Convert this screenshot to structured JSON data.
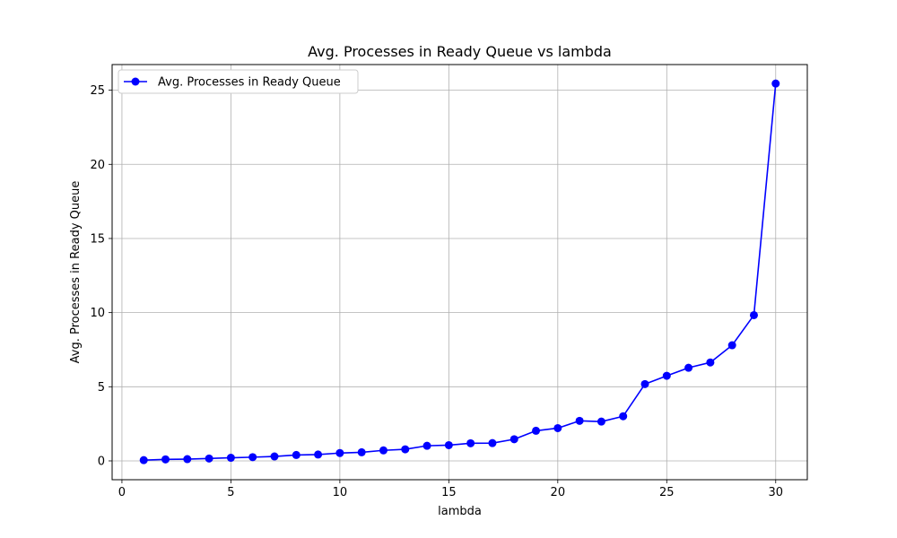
{
  "chart_data": {
    "type": "line",
    "title": "Avg. Processes in Ready Queue vs lambda",
    "xlabel": "lambda",
    "ylabel": "Avg. Processes in Ready Queue",
    "xlim": [
      -0.45,
      31.45
    ],
    "ylim": [
      -1.27,
      26.73
    ],
    "xticks": [
      0,
      5,
      10,
      15,
      20,
      25,
      30
    ],
    "yticks": [
      0,
      5,
      10,
      15,
      20,
      25
    ],
    "grid": true,
    "legend_position": "top-left",
    "series": [
      {
        "name": "Avg. Processes in Ready Queue",
        "color": "#0000ff",
        "marker": "circle",
        "x": [
          1,
          2,
          3,
          4,
          5,
          6,
          7,
          8,
          9,
          10,
          11,
          12,
          13,
          14,
          15,
          16,
          17,
          18,
          19,
          20,
          21,
          22,
          23,
          24,
          25,
          26,
          27,
          28,
          29,
          30
        ],
        "y": [
          0.05,
          0.1,
          0.12,
          0.16,
          0.21,
          0.25,
          0.3,
          0.4,
          0.43,
          0.53,
          0.58,
          0.71,
          0.78,
          1.02,
          1.06,
          1.19,
          1.2,
          1.46,
          2.03,
          2.21,
          2.7,
          2.65,
          3.01,
          5.18,
          5.74,
          6.28,
          6.64,
          7.8,
          9.83,
          25.45
        ]
      }
    ]
  }
}
